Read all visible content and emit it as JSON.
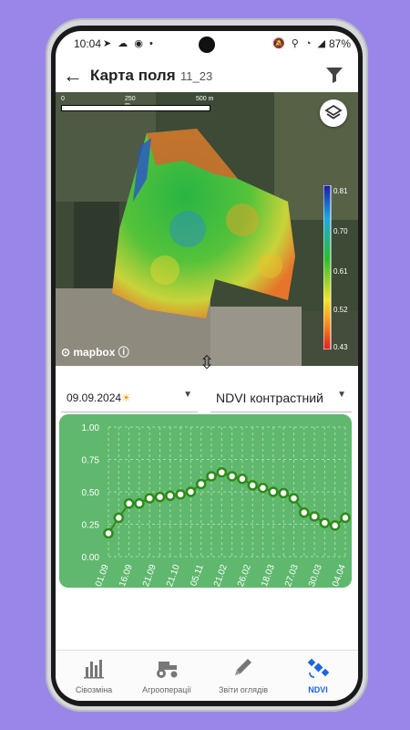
{
  "status": {
    "time": "10:04",
    "battery": "87%"
  },
  "appbar": {
    "title": "Карта поля",
    "field_id": "11_23"
  },
  "map": {
    "scale_labels": [
      "0",
      "250 m",
      "500 m"
    ],
    "legend_labels": [
      "0.81",
      "0.70",
      "0.61",
      "0.52",
      "0.43"
    ],
    "attribution": "mapbox"
  },
  "controls": {
    "date_label": "09.09.2024",
    "index_label": "NDVI контрастний"
  },
  "chart_data": {
    "type": "line",
    "ylim": [
      0,
      1.0
    ],
    "yticks": [
      "1.00",
      "0.75",
      "0.50",
      "0.25",
      "0.00"
    ],
    "xtick_labels": [
      "01.09",
      "16.09",
      "21.09",
      "21.10",
      "05.11",
      "21.02",
      "26.02",
      "18.03",
      "27.03",
      "30.03",
      "04.04"
    ],
    "values": [
      0.18,
      0.3,
      0.41,
      0.41,
      0.45,
      0.46,
      0.47,
      0.48,
      0.5,
      0.56,
      0.62,
      0.65,
      0.62,
      0.6,
      0.55,
      0.53,
      0.5,
      0.49,
      0.45,
      0.34,
      0.31,
      0.26,
      0.24,
      0.3
    ],
    "colors": {
      "background": "#5fb86e",
      "marker_fill": "#ffffff",
      "marker_stroke": "#2f8a19"
    }
  },
  "nav": {
    "items": [
      {
        "label": "Сівозміна",
        "icon": "bar-chart-icon"
      },
      {
        "label": "Агрооперації",
        "icon": "tractor-icon"
      },
      {
        "label": "Звіти оглядів",
        "icon": "pencil-icon"
      },
      {
        "label": "NDVI",
        "icon": "satellite-icon"
      }
    ],
    "active_color": "#1f63e0"
  }
}
